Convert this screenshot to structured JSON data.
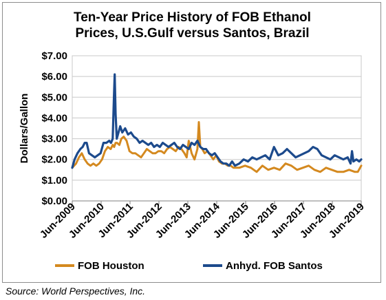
{
  "colors": {
    "houston": "#d4891f",
    "santos": "#1c4a8c",
    "grid": "#c8c8c8",
    "axis": "#7f7f7f"
  },
  "chart_data": {
    "type": "line",
    "title": "Ten-Year Price History of FOB Ethanol Prices, U.S.Gulf versus Santos, Brazil",
    "title_lines": [
      "Ten-Year Price History of FOB Ethanol",
      "Prices, U.S.Gulf versus Santos, Brazil"
    ],
    "xlabel": "",
    "ylabel": "Dollars/Gallon",
    "ylim": [
      0,
      7
    ],
    "xlim": [
      2009.42,
      2019.42
    ],
    "grid": true,
    "legend_position": "bottom",
    "y_ticks": [
      "$0.00",
      "$1.00",
      "$2.00",
      "$3.00",
      "$4.00",
      "$5.00",
      "$6.00",
      "$7.00"
    ],
    "x_ticks": [
      "Jun-2009",
      "Jun-2010",
      "Jun-2011",
      "Jun-2012",
      "Jun-2013",
      "Jun-2014",
      "Jun-2015",
      "Jun-2016",
      "Jun-2017",
      "Jun-2018",
      "Jun-2019"
    ],
    "series": [
      {
        "name": "FOB Houston",
        "x": [
          2009.42,
          2009.55,
          2009.65,
          2009.75,
          2009.85,
          2009.95,
          2010.05,
          2010.15,
          2010.25,
          2010.35,
          2010.45,
          2010.55,
          2010.65,
          2010.75,
          2010.82,
          2010.87,
          2010.92,
          2010.97,
          2011.05,
          2011.12,
          2011.2,
          2011.3,
          2011.4,
          2011.5,
          2011.6,
          2011.7,
          2011.8,
          2011.9,
          2012.0,
          2012.1,
          2012.2,
          2012.3,
          2012.4,
          2012.5,
          2012.6,
          2012.7,
          2012.8,
          2012.9,
          2013.0,
          2013.1,
          2013.2,
          2013.3,
          2013.38,
          2013.45,
          2013.55,
          2013.65,
          2013.75,
          2013.8,
          2013.85,
          2013.92,
          2014.0,
          2014.1,
          2014.2,
          2014.3,
          2014.4,
          2014.5,
          2014.6,
          2014.7,
          2014.8,
          2014.9,
          2015.0,
          2015.2,
          2015.4,
          2015.6,
          2015.8,
          2016.0,
          2016.2,
          2016.4,
          2016.6,
          2016.8,
          2017.0,
          2017.2,
          2017.4,
          2017.6,
          2017.8,
          2018.0,
          2018.2,
          2018.4,
          2018.6,
          2018.8,
          2019.0,
          2019.2,
          2019.3,
          2019.42
        ],
        "values": [
          1.6,
          1.8,
          2.1,
          2.3,
          2.0,
          1.8,
          1.7,
          1.8,
          1.7,
          1.8,
          2.0,
          2.4,
          2.6,
          2.5,
          2.7,
          2.6,
          2.8,
          2.8,
          2.7,
          3.0,
          3.1,
          2.9,
          2.4,
          2.3,
          2.3,
          2.2,
          2.1,
          2.3,
          2.5,
          2.4,
          2.3,
          2.3,
          2.4,
          2.4,
          2.3,
          2.5,
          2.6,
          2.5,
          2.4,
          2.6,
          2.5,
          2.3,
          2.1,
          2.9,
          2.3,
          2.0,
          2.5,
          3.8,
          2.6,
          2.5,
          2.3,
          2.4,
          2.2,
          2.0,
          2.2,
          1.9,
          1.8,
          1.8,
          1.7,
          1.7,
          1.6,
          1.6,
          1.7,
          1.6,
          1.4,
          1.7,
          1.5,
          1.6,
          1.5,
          1.8,
          1.7,
          1.5,
          1.6,
          1.7,
          1.5,
          1.4,
          1.6,
          1.5,
          1.4,
          1.4,
          1.5,
          1.4,
          1.4,
          1.7
        ]
      },
      {
        "name": "Anhyd. FOB Santos",
        "x": [
          2009.42,
          2009.5,
          2009.6,
          2009.7,
          2009.78,
          2009.85,
          2009.92,
          2010.0,
          2010.1,
          2010.2,
          2010.3,
          2010.4,
          2010.5,
          2010.6,
          2010.7,
          2010.76,
          2010.82,
          2010.86,
          2010.89,
          2010.92,
          2010.96,
          2011.0,
          2011.08,
          2011.15,
          2011.25,
          2011.35,
          2011.45,
          2011.55,
          2011.65,
          2011.75,
          2011.85,
          2011.95,
          2012.05,
          2012.15,
          2012.25,
          2012.35,
          2012.45,
          2012.55,
          2012.65,
          2012.75,
          2012.85,
          2012.95,
          2013.05,
          2013.15,
          2013.25,
          2013.35,
          2013.45,
          2013.55,
          2013.65,
          2013.75,
          2013.85,
          2013.95,
          2014.05,
          2014.15,
          2014.25,
          2014.35,
          2014.45,
          2014.55,
          2014.65,
          2014.75,
          2014.85,
          2014.95,
          2015.05,
          2015.2,
          2015.35,
          2015.5,
          2015.65,
          2015.8,
          2015.95,
          2016.1,
          2016.25,
          2016.4,
          2016.55,
          2016.7,
          2016.85,
          2017.0,
          2017.15,
          2017.3,
          2017.45,
          2017.6,
          2017.75,
          2017.9,
          2018.05,
          2018.2,
          2018.35,
          2018.5,
          2018.65,
          2018.8,
          2018.95,
          2019.05,
          2019.1,
          2019.15,
          2019.25,
          2019.35,
          2019.42
        ],
        "values": [
          1.6,
          2.0,
          2.3,
          2.5,
          2.6,
          2.8,
          2.8,
          2.3,
          2.2,
          2.1,
          2.2,
          2.3,
          2.8,
          2.8,
          2.9,
          2.8,
          3.0,
          4.9,
          6.1,
          4.2,
          3.0,
          3.2,
          3.6,
          3.3,
          3.5,
          3.2,
          3.3,
          3.1,
          3.0,
          2.8,
          2.9,
          2.8,
          2.7,
          2.8,
          2.6,
          2.7,
          2.6,
          2.8,
          2.7,
          2.6,
          2.7,
          2.8,
          2.6,
          2.5,
          2.7,
          2.6,
          2.5,
          2.8,
          2.7,
          2.9,
          2.6,
          2.5,
          2.5,
          2.3,
          2.2,
          2.3,
          2.1,
          1.9,
          1.8,
          1.8,
          1.7,
          1.9,
          1.7,
          1.8,
          2.0,
          1.9,
          2.1,
          2.0,
          2.1,
          2.2,
          2.0,
          2.6,
          2.2,
          2.3,
          2.5,
          2.3,
          2.1,
          2.2,
          2.3,
          2.4,
          2.6,
          2.5,
          2.2,
          2.1,
          2.0,
          2.2,
          2.1,
          2.0,
          2.1,
          1.8,
          2.4,
          1.9,
          2.0,
          1.9,
          2.0
        ]
      }
    ]
  },
  "source": "Source: World Perspectives, Inc."
}
